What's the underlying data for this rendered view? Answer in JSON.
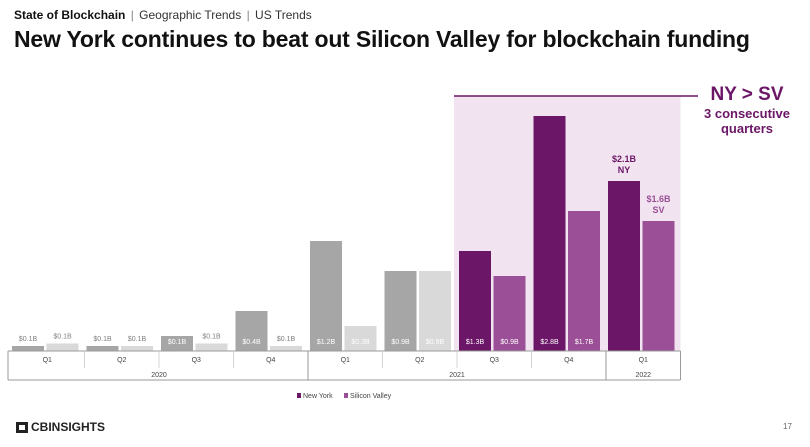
{
  "breadcrumb": {
    "section": "State of Blockchain",
    "parts": [
      "Geographic Trends",
      "US Trends"
    ],
    "separator": "|"
  },
  "title": "New York continues to beat out Silicon Valley for blockchain funding",
  "callout": {
    "headline": "NY > SV",
    "line1": "3 consecutive",
    "line2": "quarters"
  },
  "footer": {
    "brand": "CBINSIGHTS",
    "page": "17"
  },
  "colors": {
    "ny_past": "#a6a6a6",
    "sv_past": "#d9d9d9",
    "ny_highlight": "#6b1666",
    "sv_highlight": "#9b4f96",
    "highlight_band": "#f1e4f0",
    "callout": "#6b1666"
  },
  "chart_data": {
    "type": "bar",
    "title": "",
    "categories": [
      "Q1 2020",
      "Q2 2020",
      "Q3 2020",
      "Q4 2020",
      "Q1 2021",
      "Q2 2021",
      "Q3 2021",
      "Q4 2021",
      "Q1 2022"
    ],
    "quarters": [
      "Q1",
      "Q2",
      "Q3",
      "Q4",
      "Q1",
      "Q2",
      "Q3",
      "Q4",
      "Q1"
    ],
    "years": [
      {
        "label": "2020",
        "span": 4
      },
      {
        "label": "2021",
        "span": 4
      },
      {
        "label": "2022",
        "span": 1
      }
    ],
    "series": [
      {
        "name": "New York",
        "values": [
          0.1,
          0.1,
          0.3,
          0.8,
          2.2,
          1.6,
          2.0,
          4.7,
          3.4
        ],
        "labels": [
          "$0.1B",
          "$0.1B",
          "$0.1B",
          "$0.4B",
          "$1.2B",
          "$0.9B",
          "$1.3B",
          "$2.8B",
          "$2.1B"
        ]
      },
      {
        "name": "Silicon Valley",
        "values": [
          0.15,
          0.1,
          0.15,
          0.1,
          0.5,
          1.6,
          1.5,
          2.8,
          2.6
        ],
        "labels": [
          "$0.1B",
          "$0.1B",
          "$0.1B",
          "$0.1B",
          "$0.3B",
          "$0.9B",
          "$0.9B",
          "$1.7B",
          "$1.6B"
        ]
      }
    ],
    "highlight_from_index": 6,
    "outside_labels": {
      "8": [
        "NY",
        "SV"
      ]
    },
    "legend": [
      "New York",
      "Silicon Valley"
    ],
    "legend_position": "bottom-center",
    "xlabel": "",
    "ylabel": "",
    "grid": false,
    "ylim": [
      0,
      5
    ]
  }
}
